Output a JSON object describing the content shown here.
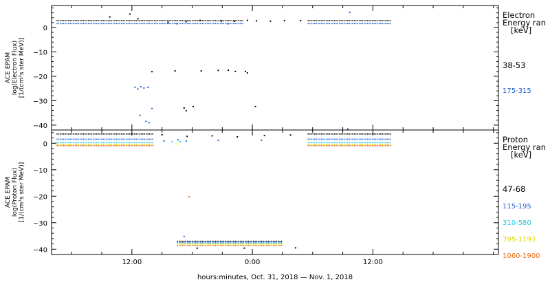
{
  "chart_data": [
    {
      "type": "scatter",
      "ylabel_lines": [
        "ACE EPAM",
        "log(Electron Flux)",
        "[1/(cm²s ster MeV)]"
      ],
      "ylim": [
        -42,
        9
      ],
      "yticks": [
        0,
        -10,
        -20,
        -30,
        -40
      ],
      "legend": {
        "title_lines": [
          "Electron",
          "Energy ran"
        ],
        "unit": "[keV]",
        "entries": [
          {
            "label": "38-53",
            "color": "#000000"
          },
          {
            "label": "175-315",
            "color": "#1f5fd0"
          }
        ]
      },
      "series": [
        {
          "color": "#000000",
          "segments": [
            {
              "x": [
                -7.5,
                11.1
              ],
              "y": 2.8
            },
            {
              "x": [
                17.5,
                25.8
              ],
              "y": 2.8
            }
          ],
          "points": [
            [
              -2.2,
              4.3
            ],
            [
              -0.2,
              5.5
            ],
            [
              0.6,
              3.6
            ],
            [
              3.6,
              2.1
            ],
            [
              5.4,
              2.4
            ],
            [
              6.8,
              2.9
            ],
            [
              8.9,
              2.6
            ],
            [
              10.2,
              2.5
            ],
            [
              11.5,
              2.9
            ],
            [
              12.4,
              2.7
            ],
            [
              13.8,
              2.6
            ],
            [
              15.2,
              2.8
            ],
            [
              16.8,
              2.8
            ]
          ]
        },
        {
          "color": "#1f5fd0",
          "segments": [
            {
              "x": [
                -7.5,
                11.1
              ],
              "y": 1.6
            },
            {
              "x": [
                17.5,
                25.8
              ],
              "y": 1.6
            }
          ],
          "points": [
            [
              0.3,
              -24.5
            ],
            [
              0.6,
              -25.2
            ],
            [
              0.9,
              -24.3
            ],
            [
              1.2,
              -24.8
            ],
            [
              1.6,
              -24.5
            ],
            [
              0.8,
              -36.0
            ],
            [
              1.4,
              -38.5
            ],
            [
              2.0,
              -33.2
            ],
            [
              1.7,
              -39.0
            ],
            [
              21.7,
              6.2
            ],
            [
              4.5,
              1.5
            ],
            [
              9.6,
              1.5
            ]
          ]
        },
        {
          "color": "#000000",
          "points": [
            [
              2.0,
              -18.1
            ],
            [
              4.3,
              -17.8
            ],
            [
              5.2,
              -33.0
            ],
            [
              5.4,
              -34.1
            ],
            [
              6.1,
              -32.4
            ],
            [
              6.9,
              -17.8
            ],
            [
              8.6,
              -17.6
            ],
            [
              9.6,
              -17.5
            ],
            [
              10.3,
              -18.0
            ],
            [
              11.3,
              -18.0
            ],
            [
              11.5,
              -18.6
            ],
            [
              12.3,
              -32.4
            ]
          ]
        }
      ]
    },
    {
      "type": "scatter",
      "ylabel_lines": [
        "ACE EPAM",
        "log(Proton Flux)",
        "[1/(cm²s ster MeV)]"
      ],
      "ylim": [
        -42,
        5
      ],
      "yticks": [
        0,
        -10,
        -20,
        -30,
        -40
      ],
      "legend": {
        "title_lines": [
          "Proton",
          "Energy ran"
        ],
        "unit": "[keV]",
        "entries": [
          {
            "label": "47-68",
            "color": "#000000"
          },
          {
            "label": "115-195",
            "color": "#1f5fd0"
          },
          {
            "label": "310-580",
            "color": "#22c8e0"
          },
          {
            "label": "795-1193",
            "color": "#e6e61a"
          },
          {
            "label": "1060-1900",
            "color": "#ef6b12"
          }
        ]
      },
      "series": [
        {
          "color": "#000000",
          "segments": [
            {
              "x": [
                -7.5,
                2.2
              ],
              "y": 3.5
            },
            {
              "x": [
                17.5,
                25.8
              ],
              "y": 3.5
            },
            {
              "x": [
                4.5,
                15.0
              ],
              "y": -37.0
            }
          ],
          "points": [
            [
              3.0,
              3.2
            ],
            [
              5.5,
              2.6
            ],
            [
              8.0,
              2.8
            ],
            [
              10.5,
              2.4
            ],
            [
              13.2,
              2.9
            ],
            [
              15.8,
              3.1
            ],
            [
              6.5,
              -39.6
            ],
            [
              11.2,
              -39.6
            ],
            [
              16.3,
              -39.5
            ]
          ]
        },
        {
          "color": "#1f5fd0",
          "segments": [
            {
              "x": [
                -7.5,
                2.2
              ],
              "y": 1.5
            },
            {
              "x": [
                17.5,
                25.8
              ],
              "y": 1.5
            },
            {
              "x": [
                4.5,
                15.0
              ],
              "y": -37.3
            }
          ],
          "points": [
            [
              3.2,
              0.9
            ],
            [
              4.6,
              1.3
            ],
            [
              5.4,
              0.8
            ],
            [
              8.6,
              1.1
            ],
            [
              12.9,
              1.1
            ],
            [
              21.5,
              5.4
            ],
            [
              5.2,
              -35.2
            ]
          ]
        },
        {
          "color": "#22c8e0",
          "segments": [
            {
              "x": [
                -7.5,
                2.2
              ],
              "y": 0.2
            },
            {
              "x": [
                17.5,
                25.8
              ],
              "y": 0.2
            },
            {
              "x": [
                4.5,
                15.0
              ],
              "y": -37.8
            }
          ],
          "points": [
            [
              4.0,
              0.5
            ],
            [
              4.8,
              0.6
            ]
          ]
        },
        {
          "color": "#e6e61a",
          "segments": [
            {
              "x": [
                -7.5,
                2.2
              ],
              "y": -0.5
            },
            {
              "x": [
                17.5,
                25.8
              ],
              "y": -0.5
            },
            {
              "x": [
                4.5,
                15.0
              ],
              "y": -38.1
            }
          ],
          "points": [
            [
              4.4,
              -0.3
            ]
          ]
        },
        {
          "color": "#ef6b12",
          "segments": [
            {
              "x": [
                -7.5,
                2.2
              ],
              "y": -0.9
            },
            {
              "x": [
                17.5,
                25.8
              ],
              "y": -0.9
            },
            {
              "x": [
                4.5,
                15.0
              ],
              "y": -38.6
            }
          ],
          "points": [
            [
              5.7,
              -20.2
            ],
            [
              5.1,
              -37.2
            ]
          ]
        }
      ]
    }
  ],
  "x_axis": {
    "xlim": [
      -8,
      36.5
    ],
    "ticks": [
      {
        "x": 0,
        "label": "12:00"
      },
      {
        "x": 12,
        "label": "0:00"
      },
      {
        "x": 24,
        "label": "12:00"
      }
    ],
    "minor_step": 3,
    "label": "hours:minutes, Oct. 31, 2018 — Nov.  1, 2018"
  }
}
